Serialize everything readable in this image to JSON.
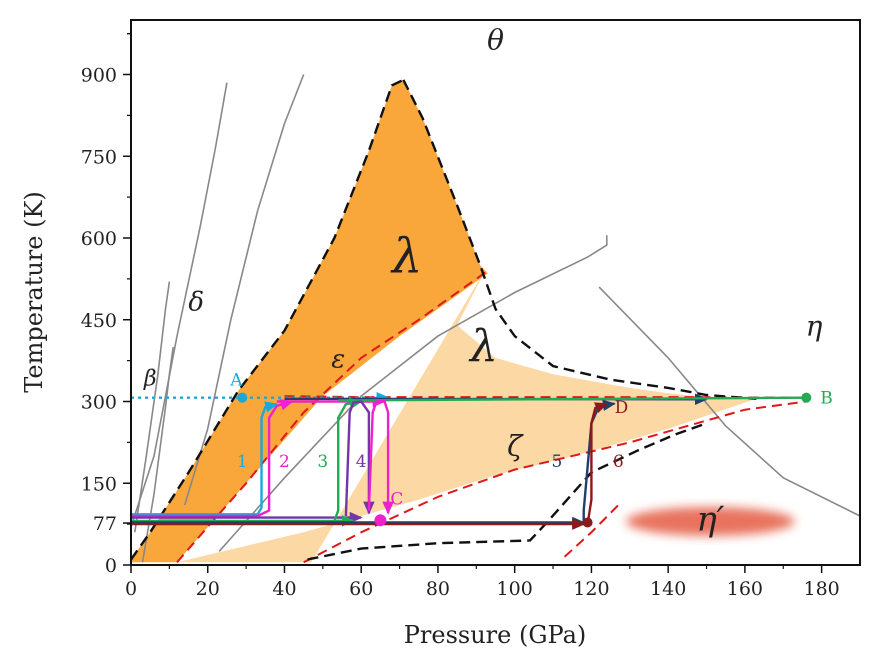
{
  "chart_data": {
    "type": "phase-diagram",
    "xlabel": "Pressure (GPa)",
    "ylabel": "Temperature (K)",
    "xlim": [
      0,
      190
    ],
    "ylim": [
      0,
      1000
    ],
    "xticks": [
      0,
      20,
      40,
      60,
      80,
      100,
      120,
      140,
      160,
      180
    ],
    "yticks": [
      0,
      77,
      150,
      300,
      450,
      600,
      750,
      900
    ],
    "colors": {
      "lambda_dark": "#f9a73a",
      "lambda_light": "#fcd8a4",
      "eta_prime_blob": "#e8735e",
      "boundary_black": "#111111",
      "boundary_red": "#e01818",
      "gray_line": "#888888",
      "cyan": "#1aa8d8",
      "green": "#22aa55",
      "magenta": "#ee22cc",
      "purple": "#7733aa",
      "navy": "#1f3f6e",
      "maroon": "#8b1a1a"
    },
    "phases": [
      {
        "id": "theta",
        "label": "θ",
        "x": 95,
        "y": 960
      },
      {
        "id": "delta",
        "label": "δ",
        "x": 17,
        "y": 480
      },
      {
        "id": "beta",
        "label": "β",
        "x": 5,
        "y": 340
      },
      {
        "id": "eta",
        "label": "η",
        "x": 178,
        "y": 435
      },
      {
        "id": "epsilon",
        "label": "ε",
        "x": 54,
        "y": 375
      },
      {
        "id": "lambda_upper",
        "label": "λ",
        "x": 72,
        "y": 560
      },
      {
        "id": "lambda_lower",
        "label": "λ",
        "x": 92,
        "y": 395
      },
      {
        "id": "zeta",
        "label": "ζ",
        "x": 100,
        "y": 215
      },
      {
        "id": "eta_prime",
        "label": "η′",
        "x": 151,
        "y": 80
      }
    ],
    "points": [
      {
        "label": "A",
        "x": 29,
        "y": 307,
        "color": "#1aa8d8"
      },
      {
        "label": "B",
        "x": 176,
        "y": 307,
        "color": "#22aa55"
      },
      {
        "label": "C",
        "x": 65,
        "y": 82,
        "color": "#ee22cc"
      },
      {
        "label": "D",
        "x": 125,
        "y": 275,
        "color": "#8b1a1a"
      }
    ],
    "paths": [
      {
        "label": "1",
        "color": "#1aa8d8"
      },
      {
        "label": "2",
        "color": "#ee22cc"
      },
      {
        "label": "3",
        "color": "#22aa55"
      },
      {
        "label": "4",
        "color": "#7733aa"
      },
      {
        "label": "5",
        "color": "#1f3f6e"
      },
      {
        "label": "6",
        "color": "#8b1a1a"
      }
    ]
  }
}
